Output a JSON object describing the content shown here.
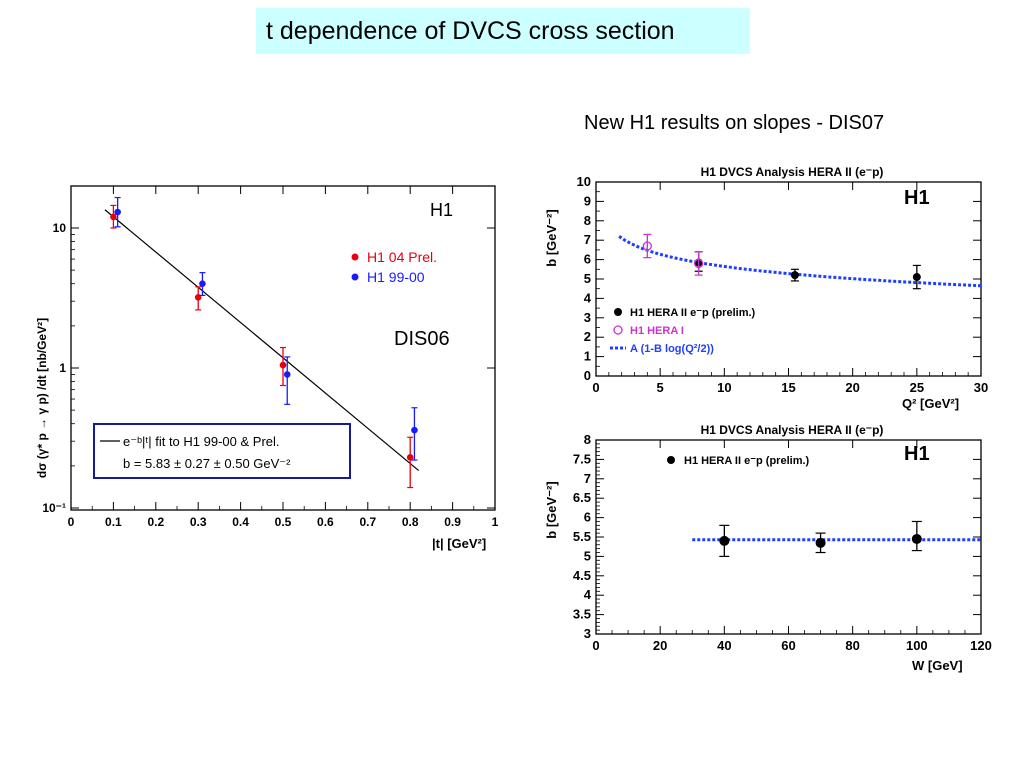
{
  "title": "t dependence of DVCS cross section",
  "subtitle": "New H1 results on slopes - DIS07",
  "colors": {
    "title_bg": "#ccffff",
    "red": "#e8000b",
    "blue": "#1a1aff",
    "fit_blue": "#1f3fff",
    "magenta": "#cc33cc",
    "black": "#000000"
  },
  "chart_data": [
    {
      "type": "scatter",
      "yscale": "log",
      "xlabel": "|t| [GeV²]",
      "ylabel": "dσ (γ* p → γ p) /dt [nb/GeV²]",
      "xlim": [
        0,
        1
      ],
      "ylim": [
        0.1,
        20
      ],
      "x_ticks": [
        "0",
        "0.1",
        "0.2",
        "0.3",
        "0.4",
        "0.5",
        "0.6",
        "0.7",
        "0.8",
        "0.9",
        "1"
      ],
      "y_ticks": [
        "10⁻¹",
        "1",
        "10"
      ],
      "annotations": [
        "H1",
        "DIS06"
      ],
      "fit_label_line1": "e⁻ᵇ|ᵗ| fit to H1 99-00 & Prel.",
      "fit_label_line2": "b = 5.83 ± 0.27 ± 0.50 GeV⁻²",
      "series": [
        {
          "name": "H1 04 Prel.",
          "color": "red",
          "points": [
            {
              "x": 0.1,
              "y": 12.0,
              "lo": 10.0,
              "hi": 14.5
            },
            {
              "x": 0.3,
              "y": 3.2,
              "lo": 2.6,
              "hi": 3.8
            },
            {
              "x": 0.5,
              "y": 1.05,
              "lo": 0.75,
              "hi": 1.4
            },
            {
              "x": 0.8,
              "y": 0.23,
              "lo": 0.14,
              "hi": 0.32
            }
          ]
        },
        {
          "name": "H1 99-00",
          "color": "blue",
          "points": [
            {
              "x": 0.11,
              "y": 13.0,
              "lo": 10.2,
              "hi": 16.5
            },
            {
              "x": 0.31,
              "y": 4.0,
              "lo": 3.3,
              "hi": 4.8
            },
            {
              "x": 0.51,
              "y": 0.9,
              "lo": 0.55,
              "hi": 1.2
            },
            {
              "x": 0.81,
              "y": 0.36,
              "lo": 0.22,
              "hi": 0.52
            }
          ]
        }
      ],
      "fit": {
        "x": [
          0.08,
          0.82
        ],
        "y": [
          13.5,
          0.185
        ]
      }
    },
    {
      "type": "scatter",
      "title": "H1 DVCS Analysis HERA II (e⁻p)",
      "xlabel": "Q² [GeV²]",
      "ylabel": "b [GeV⁻²]",
      "xlim": [
        0,
        30
      ],
      "ylim": [
        0,
        10
      ],
      "x_ticks": [
        "0",
        "5",
        "10",
        "15",
        "20",
        "25",
        "30"
      ],
      "y_ticks": [
        "0",
        "1",
        "2",
        "3",
        "4",
        "5",
        "6",
        "7",
        "8",
        "9",
        "10"
      ],
      "badge": "H1",
      "legend": [
        "H1 HERA II e⁻p (prelim.)",
        "H1 HERA I",
        "A (1-B log(Q²/2))"
      ],
      "series": [
        {
          "name": "H1 HERA II e⁻p (prelim.)",
          "color": "black",
          "points": [
            {
              "x": 8,
              "y": 5.85,
              "lo": 5.4,
              "hi": 6.4
            },
            {
              "x": 15.5,
              "y": 5.2,
              "lo": 4.9,
              "hi": 5.5
            },
            {
              "x": 25,
              "y": 5.1,
              "lo": 4.5,
              "hi": 5.7
            }
          ]
        },
        {
          "name": "H1 HERA I",
          "color": "magenta",
          "points": [
            {
              "x": 4,
              "y": 6.7,
              "lo": 6.1,
              "hi": 7.3
            },
            {
              "x": 8,
              "y": 5.8,
              "lo": 5.2,
              "hi": 6.4
            }
          ]
        }
      ],
      "fit": {
        "name": "A (1-B log(Q²/2))",
        "x": [
          1.8,
          30
        ],
        "y": [
          7.2,
          4.65
        ]
      }
    },
    {
      "type": "scatter",
      "title": "H1 DVCS Analysis HERA II (e⁻p)",
      "xlabel": "W [GeV]",
      "ylabel": "b [GeV⁻²]",
      "xlim": [
        0,
        120
      ],
      "ylim": [
        3,
        8
      ],
      "x_ticks": [
        "0",
        "20",
        "40",
        "60",
        "80",
        "100",
        "120"
      ],
      "y_ticks": [
        "3",
        "3.5",
        "4",
        "4.5",
        "5",
        "5.5",
        "6",
        "6.5",
        "7",
        "7.5",
        "8"
      ],
      "badge": "H1",
      "legend": [
        "H1 HERA II e⁻p (prelim.)"
      ],
      "series": [
        {
          "name": "H1 HERA II e⁻p (prelim.)",
          "color": "black",
          "points": [
            {
              "x": 40,
              "y": 5.4,
              "lo": 5.0,
              "hi": 5.8
            },
            {
              "x": 70,
              "y": 5.35,
              "lo": 5.1,
              "hi": 5.6
            },
            {
              "x": 100,
              "y": 5.45,
              "lo": 5.15,
              "hi": 5.9
            }
          ]
        }
      ],
      "fit": {
        "x": [
          30,
          120
        ],
        "y": [
          5.43,
          5.43
        ]
      }
    }
  ]
}
